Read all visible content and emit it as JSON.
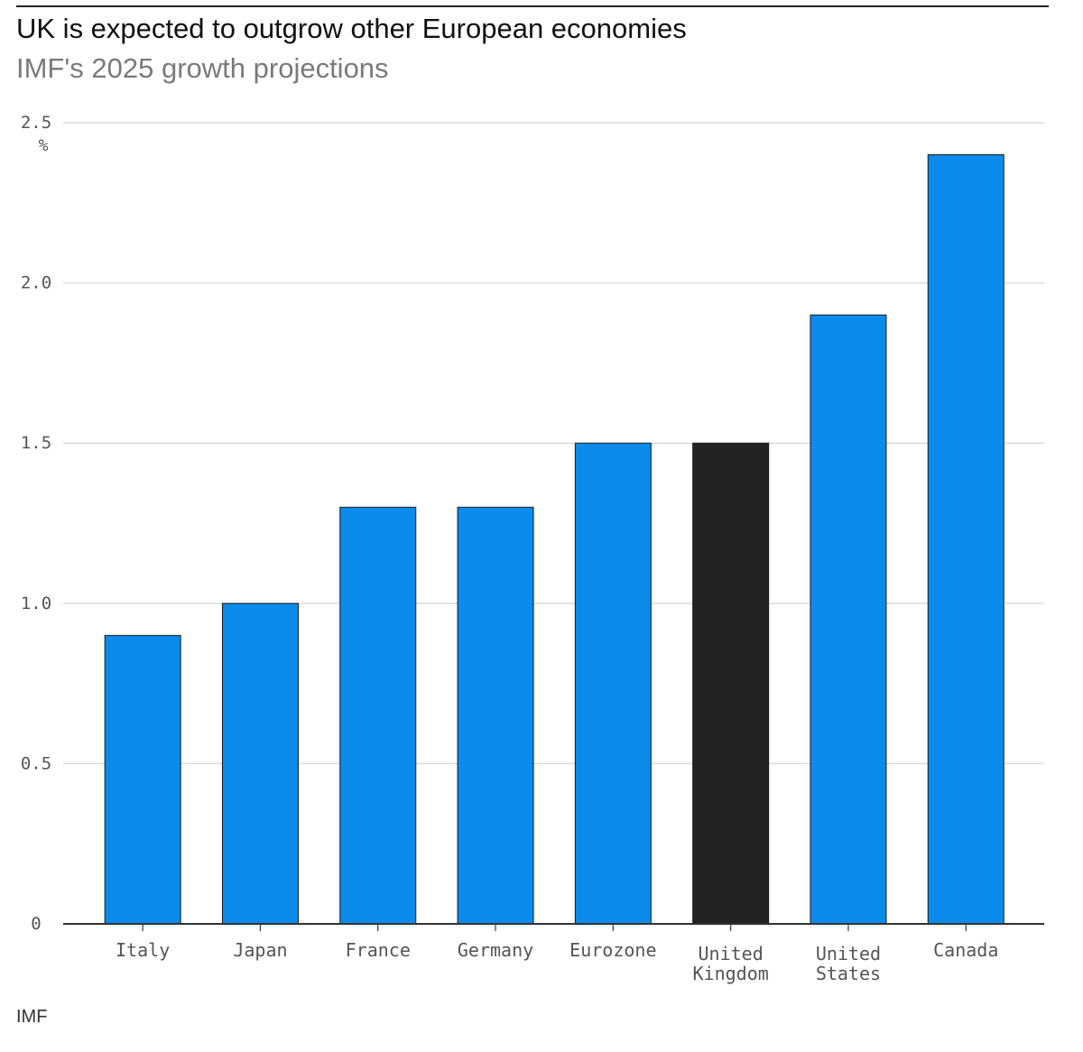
{
  "header": {
    "title": "UK is expected to outgrow other European economies",
    "subtitle": "IMF's 2025 growth projections"
  },
  "footer": {
    "source": "IMF"
  },
  "colors": {
    "bar": "#0b8beb",
    "highlight": "#232323",
    "grid": "#dcdcdc",
    "axis": "#333333",
    "tick_text": "#555555"
  },
  "chart_data": {
    "type": "bar",
    "title": "UK is expected to outgrow other European economies",
    "subtitle": "IMF's 2025 growth projections",
    "xlabel": "",
    "ylabel": "",
    "y_unit": "%",
    "ylim": [
      0,
      2.5
    ],
    "y_ticks": [
      0,
      0.5,
      1.0,
      1.5,
      2.0,
      2.5
    ],
    "y_tick_labels": [
      "0",
      "0.5",
      "1.0",
      "1.5",
      "2.0",
      "2.5"
    ],
    "grid": true,
    "legend": "none",
    "categories": [
      [
        "Italy"
      ],
      [
        "Japan"
      ],
      [
        "France"
      ],
      [
        "Germany"
      ],
      [
        "Eurozone"
      ],
      [
        "United",
        "Kingdom"
      ],
      [
        "United",
        "States"
      ],
      [
        "Canada"
      ]
    ],
    "values": [
      0.9,
      1.0,
      1.3,
      1.3,
      1.5,
      1.5,
      1.9,
      2.4
    ],
    "highlight_index": 5,
    "source": "IMF"
  }
}
